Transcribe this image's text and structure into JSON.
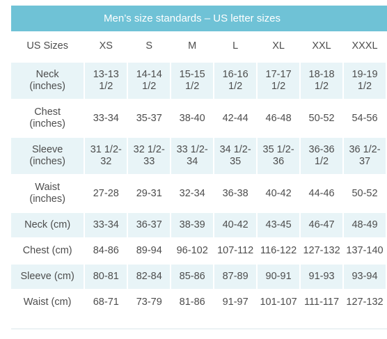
{
  "title": "Men’s size standards – US letter sizes",
  "table": {
    "header": {
      "label": "US Sizes",
      "sizes": [
        "XS",
        "S",
        "M",
        "L",
        "XL",
        "XXL",
        "XXXL"
      ]
    },
    "rows": [
      {
        "label": "Neck (inches)",
        "label_lines": [
          "Neck",
          "(inches)"
        ],
        "cells": [
          [
            "13-13",
            "1/2"
          ],
          [
            "14-14",
            "1/2"
          ],
          [
            "15-15",
            "1/2"
          ],
          [
            "16-16",
            "1/2"
          ],
          [
            "17-17",
            "1/2"
          ],
          [
            "18-18",
            "1/2"
          ],
          [
            "19-19",
            "1/2"
          ]
        ]
      },
      {
        "label": "Chest (inches)",
        "label_lines": [
          "Chest",
          "(inches)"
        ],
        "cells": [
          [
            "33-34"
          ],
          [
            "35-37"
          ],
          [
            "38-40"
          ],
          [
            "42-44"
          ],
          [
            "46-48"
          ],
          [
            "50-52"
          ],
          [
            "54-56"
          ]
        ]
      },
      {
        "label": "Sleeve (inches)",
        "label_lines": [
          "Sleeve",
          "(inches)"
        ],
        "cells": [
          [
            "31 1/2-",
            "32"
          ],
          [
            "32 1/2-",
            "33"
          ],
          [
            "33 1/2-",
            "34"
          ],
          [
            "34 1/2-",
            "35"
          ],
          [
            "35 1/2-",
            "36"
          ],
          [
            "36-36",
            "1/2"
          ],
          [
            "36 1/2-",
            "37"
          ]
        ]
      },
      {
        "label": "Waist (inches)",
        "label_lines": [
          "Waist",
          "(inches)"
        ],
        "cells": [
          [
            "27-28"
          ],
          [
            "29-31"
          ],
          [
            "32-34"
          ],
          [
            "36-38"
          ],
          [
            "40-42"
          ],
          [
            "44-46"
          ],
          [
            "50-52"
          ]
        ]
      },
      {
        "label": "Neck (cm)",
        "label_lines": [
          "Neck (cm)"
        ],
        "cells": [
          [
            "33-34"
          ],
          [
            "36-37"
          ],
          [
            "38-39"
          ],
          [
            "40-42"
          ],
          [
            "43-45"
          ],
          [
            "46-47"
          ],
          [
            "48-49"
          ]
        ]
      },
      {
        "label": "Chest (cm)",
        "label_lines": [
          "Chest (cm)"
        ],
        "cells": [
          [
            "84-86"
          ],
          [
            "89-94"
          ],
          [
            "96-102"
          ],
          [
            "107-112"
          ],
          [
            "116-122"
          ],
          [
            "127-132"
          ],
          [
            "137-140"
          ]
        ]
      },
      {
        "label": "Sleeve (cm)",
        "label_lines": [
          "Sleeve (cm)"
        ],
        "cells": [
          [
            "80-81"
          ],
          [
            "82-84"
          ],
          [
            "85-86"
          ],
          [
            "87-89"
          ],
          [
            "90-91"
          ],
          [
            "91-93"
          ],
          [
            "93-94"
          ]
        ]
      },
      {
        "label": "Waist (cm)",
        "label_lines": [
          "Waist (cm)"
        ],
        "cells": [
          [
            "68-71"
          ],
          [
            "73-79"
          ],
          [
            "81-86"
          ],
          [
            "91-97"
          ],
          [
            "101-107"
          ],
          [
            "111-117"
          ],
          [
            "127-132"
          ]
        ]
      }
    ]
  },
  "colors": {
    "title_bg": "#6fc2d6",
    "title_text": "#ffffff",
    "row_shade": "#e8f4f7",
    "cell_text": "#4d4d4d"
  }
}
